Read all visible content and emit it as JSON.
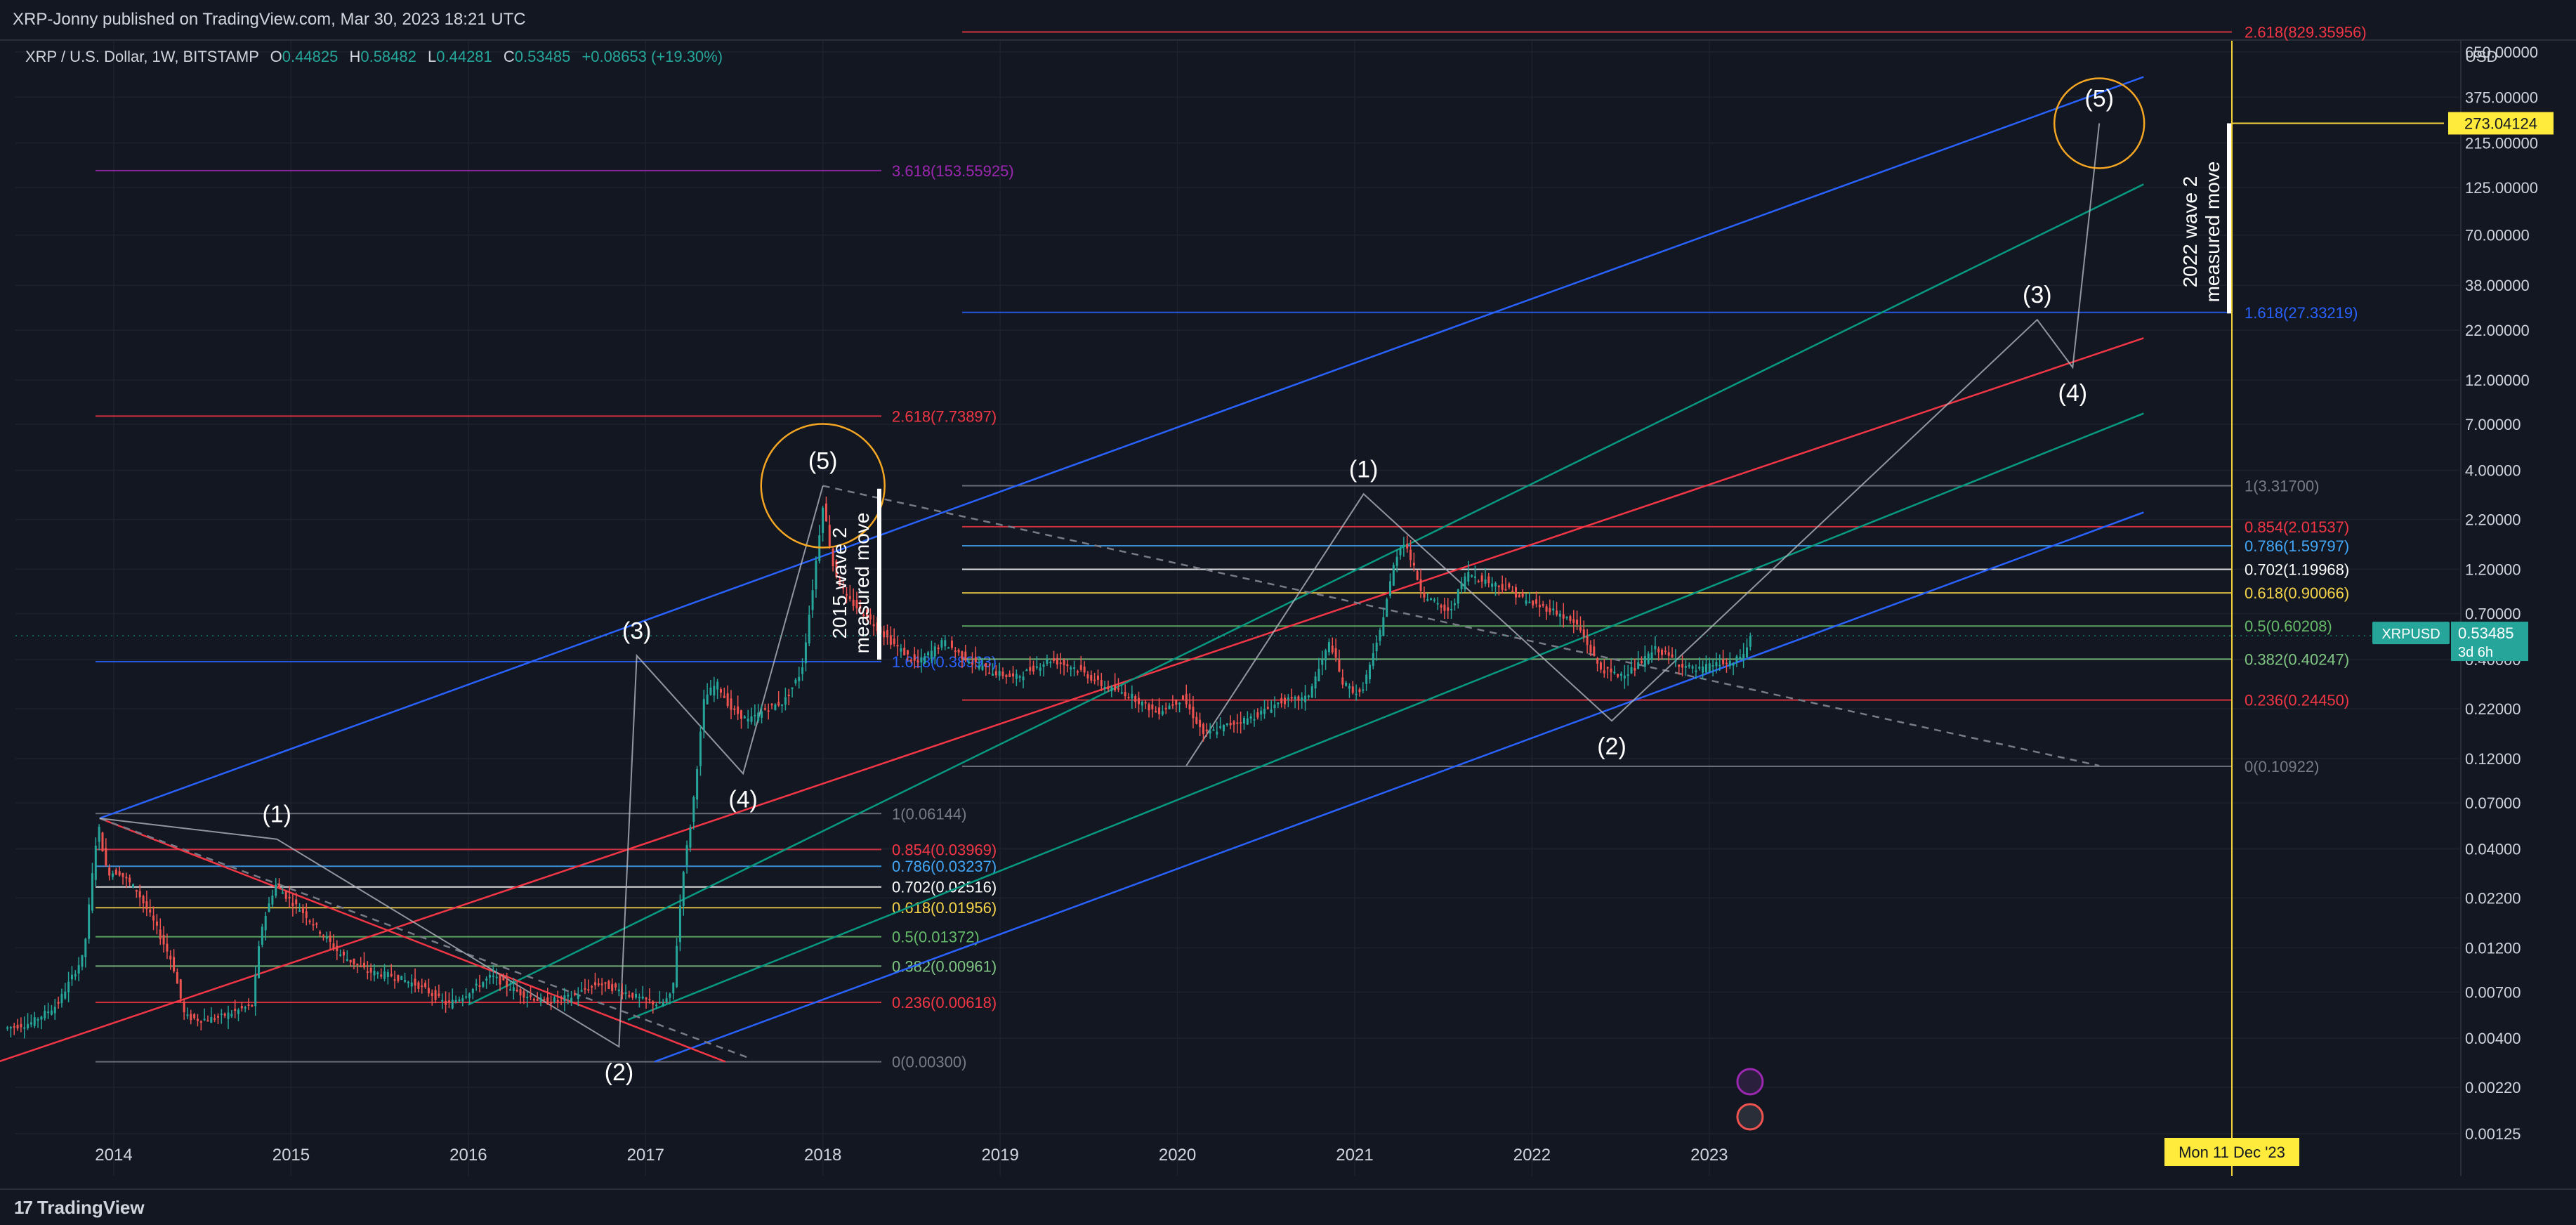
{
  "header": {
    "publisher_line": "XRP-Jonny published on TradingView.com, Mar 30, 2023 18:21 UTC"
  },
  "legend": {
    "symbol": "XRP / U.S. Dollar, 1W, BITSTAMP",
    "o_label": "O",
    "o": "0.44825",
    "h_label": "H",
    "h": "0.58482",
    "l_label": "L",
    "l": "0.44281",
    "c_label": "C",
    "c": "0.53485",
    "change": "+0.08653 (+19.30%)"
  },
  "footer": {
    "brand": "TradingView",
    "brand_glyph": "17"
  },
  "colors": {
    "background": "#131722",
    "grid": "#1e222d",
    "text": "#d1d4dc",
    "up": "#26a69a",
    "down": "#ef5350",
    "channel_blue": "#2962ff",
    "channel_green": "#089981",
    "channel_red": "#f23645",
    "fib_yellow": "#f7d54a",
    "cursor_yellow": "#f5d33b",
    "purple": "#9c27b0"
  },
  "chart_data": {
    "type": "candlestick",
    "symbol": "XRPUSD",
    "timeframe": "1W",
    "yscale": "log",
    "ylim": [
      0.001,
      1300
    ],
    "xlim": [
      2013.35,
      2025.3
    ],
    "price_unit": "USD",
    "y_ticks": [
      "650.00000",
      "375.00000",
      "215.00000",
      "125.00000",
      "70.00000",
      "38.00000",
      "22.00000",
      "12.00000",
      "7.00000",
      "4.00000",
      "2.20000",
      "1.20000",
      "0.70000",
      "0.40000",
      "0.22000",
      "0.12000",
      "0.07000",
      "0.04000",
      "0.02200",
      "0.01200",
      "0.00700",
      "0.00400",
      "0.00220",
      "0.00125"
    ],
    "x_ticks": [
      "2014",
      "2015",
      "2016",
      "2017",
      "2018",
      "2019",
      "2020",
      "2021",
      "2022",
      "2023"
    ],
    "last_price": {
      "symbol": "XRPUSD",
      "value": "0.53485",
      "countdown": "3d 6h"
    },
    "target_label": {
      "value": "273.04124",
      "price": 273.04124
    },
    "cursor_label": "Mon 11 Dec '23",
    "price_path": [
      [
        2013.4,
        0.0045
      ],
      [
        2013.55,
        0.0048
      ],
      [
        2013.7,
        0.006
      ],
      [
        2013.85,
        0.011
      ],
      [
        2013.93,
        0.055
      ],
      [
        2013.98,
        0.03
      ],
      [
        2014.05,
        0.03
      ],
      [
        2014.15,
        0.024
      ],
      [
        2014.25,
        0.016
      ],
      [
        2014.35,
        0.01
      ],
      [
        2014.42,
        0.0052
      ],
      [
        2014.5,
        0.005
      ],
      [
        2014.6,
        0.0051
      ],
      [
        2014.7,
        0.0055
      ],
      [
        2014.8,
        0.006
      ],
      [
        2014.85,
        0.015
      ],
      [
        2014.93,
        0.026
      ],
      [
        2015.0,
        0.022
      ],
      [
        2015.1,
        0.018
      ],
      [
        2015.2,
        0.014
      ],
      [
        2015.3,
        0.011
      ],
      [
        2015.45,
        0.009
      ],
      [
        2015.6,
        0.0085
      ],
      [
        2015.75,
        0.0075
      ],
      [
        2015.9,
        0.006
      ],
      [
        2016.0,
        0.0068
      ],
      [
        2016.15,
        0.0085
      ],
      [
        2016.3,
        0.007
      ],
      [
        2016.45,
        0.0062
      ],
      [
        2016.6,
        0.0066
      ],
      [
        2016.75,
        0.0078
      ],
      [
        2016.9,
        0.007
      ],
      [
        2017.0,
        0.0064
      ],
      [
        2017.1,
        0.006
      ],
      [
        2017.17,
        0.0068
      ],
      [
        2017.23,
        0.03
      ],
      [
        2017.28,
        0.06
      ],
      [
        2017.35,
        0.25
      ],
      [
        2017.42,
        0.3
      ],
      [
        2017.5,
        0.22
      ],
      [
        2017.6,
        0.19
      ],
      [
        2017.7,
        0.22
      ],
      [
        2017.8,
        0.24
      ],
      [
        2017.9,
        0.35
      ],
      [
        2017.97,
        1.1
      ],
      [
        2018.02,
        2.7
      ],
      [
        2018.08,
        1.2
      ],
      [
        2018.15,
        0.85
      ],
      [
        2018.25,
        0.7
      ],
      [
        2018.4,
        0.5
      ],
      [
        2018.55,
        0.38
      ],
      [
        2018.7,
        0.5
      ],
      [
        2018.8,
        0.42
      ],
      [
        2018.95,
        0.35
      ],
      [
        2019.1,
        0.32
      ],
      [
        2019.3,
        0.4
      ],
      [
        2019.45,
        0.36
      ],
      [
        2019.6,
        0.29
      ],
      [
        2019.75,
        0.26
      ],
      [
        2019.9,
        0.21
      ],
      [
        2020.05,
        0.25
      ],
      [
        2020.17,
        0.16
      ],
      [
        2020.3,
        0.18
      ],
      [
        2020.45,
        0.2
      ],
      [
        2020.6,
        0.24
      ],
      [
        2020.75,
        0.25
      ],
      [
        2020.88,
        0.5
      ],
      [
        2020.95,
        0.3
      ],
      [
        2021.05,
        0.26
      ],
      [
        2021.15,
        0.5
      ],
      [
        2021.25,
        1.4
      ],
      [
        2021.3,
        1.7
      ],
      [
        2021.4,
        0.9
      ],
      [
        2021.55,
        0.7
      ],
      [
        2021.65,
        1.15
      ],
      [
        2021.75,
        1.05
      ],
      [
        2021.88,
        0.95
      ],
      [
        2022.0,
        0.8
      ],
      [
        2022.15,
        0.72
      ],
      [
        2022.28,
        0.6
      ],
      [
        2022.4,
        0.36
      ],
      [
        2022.5,
        0.33
      ],
      [
        2022.6,
        0.36
      ],
      [
        2022.72,
        0.46
      ],
      [
        2022.85,
        0.38
      ],
      [
        2022.95,
        0.35
      ],
      [
        2023.05,
        0.38
      ],
      [
        2023.15,
        0.38
      ],
      [
        2023.23,
        0.45
      ],
      [
        2023.25,
        0.535
      ]
    ],
    "fib_levels_2014": [
      {
        "ratio": "3.618",
        "price": 153.55925,
        "label": "3.618(153.55925)",
        "color": "#9c27b0"
      },
      {
        "ratio": "2.618",
        "price": 7.73897,
        "label": "2.618(7.73897)",
        "color": "#f23645"
      },
      {
        "ratio": "1.618",
        "price": 0.38993,
        "label": "1.618(0.38993)",
        "color": "#2962ff"
      },
      {
        "ratio": "1",
        "price": 0.06144,
        "label": "1(0.06144)",
        "color": "#787b86"
      },
      {
        "ratio": "0.854",
        "price": 0.03969,
        "label": "0.854(0.03969)",
        "color": "#f23645"
      },
      {
        "ratio": "0.786",
        "price": 0.03237,
        "label": "0.786(0.03237)",
        "color": "#42a5f5"
      },
      {
        "ratio": "0.702",
        "price": 0.02516,
        "label": "0.702(0.02516)",
        "color": "#ffffff"
      },
      {
        "ratio": "0.618",
        "price": 0.01956,
        "label": "0.618(0.01956)",
        "color": "#f7d54a"
      },
      {
        "ratio": "0.5",
        "price": 0.01372,
        "label": "0.5(0.01372)",
        "color": "#66bb6a"
      },
      {
        "ratio": "0.382",
        "price": 0.00961,
        "label": "0.382(0.00961)",
        "color": "#81c784"
      },
      {
        "ratio": "0.236",
        "price": 0.00618,
        "label": "0.236(0.00618)",
        "color": "#f23645"
      },
      {
        "ratio": "0",
        "price": 0.003,
        "label": "0(0.00300)",
        "color": "#787b86"
      }
    ],
    "fib_levels_2018": [
      {
        "ratio": "2.618",
        "price": 829.35956,
        "label": "2.618(829.35956)",
        "color": "#f23645"
      },
      {
        "ratio": "1.618",
        "price": 27.33219,
        "label": "1.618(27.33219)",
        "color": "#2962ff"
      },
      {
        "ratio": "1",
        "price": 3.317,
        "label": "1(3.31700)",
        "color": "#787b86"
      },
      {
        "ratio": "0.854",
        "price": 2.01537,
        "label": "0.854(2.01537)",
        "color": "#f23645"
      },
      {
        "ratio": "0.786",
        "price": 1.59797,
        "label": "0.786(1.59797)",
        "color": "#42a5f5"
      },
      {
        "ratio": "0.702",
        "price": 1.19968,
        "label": "0.702(1.19968)",
        "color": "#ffffff"
      },
      {
        "ratio": "0.618",
        "price": 0.90066,
        "label": "0.618(0.90066)",
        "color": "#f7d54a"
      },
      {
        "ratio": "0.5",
        "price": 0.60208,
        "label": "0.5(0.60208)",
        "color": "#66bb6a"
      },
      {
        "ratio": "0.382",
        "price": 0.40247,
        "label": "0.382(0.40247)",
        "color": "#81c784"
      },
      {
        "ratio": "0.236",
        "price": 0.2445,
        "label": "0.236(0.24450)",
        "color": "#f23645"
      },
      {
        "ratio": "0",
        "price": 0.10922,
        "label": "0(0.10922)",
        "color": "#787b86"
      }
    ],
    "elliott_wave_2014": [
      {
        "label": "",
        "x": 2013.92,
        "y": 0.058
      },
      {
        "label": "(1)",
        "x": 2014.92,
        "y": 0.045
      },
      {
        "label": "(2)",
        "x": 2016.85,
        "y": 0.0036
      },
      {
        "label": "(3)",
        "x": 2016.95,
        "y": 0.42
      },
      {
        "label": "(4)",
        "x": 2017.55,
        "y": 0.1
      },
      {
        "label": "(5)",
        "x": 2018.0,
        "y": 3.317
      }
    ],
    "elliott_wave_2018": [
      {
        "label": "",
        "x": 2020.05,
        "y": 0.11
      },
      {
        "label": "(1)",
        "x": 2021.05,
        "y": 3.0
      },
      {
        "label": "(2)",
        "x": 2022.45,
        "y": 0.19
      },
      {
        "label": "(3)",
        "x": 2024.85,
        "y": 25
      },
      {
        "label": "(4)",
        "x": 2025.05,
        "y": 14
      },
      {
        "label": "(5)",
        "x": 2025.2,
        "y": 273
      }
    ],
    "annotations": [
      {
        "id": "measured_2015",
        "text": [
          "2015 wave 2",
          "measured move"
        ]
      },
      {
        "id": "measured_2022",
        "text": [
          "2022 wave 2",
          "measured move"
        ]
      }
    ]
  }
}
